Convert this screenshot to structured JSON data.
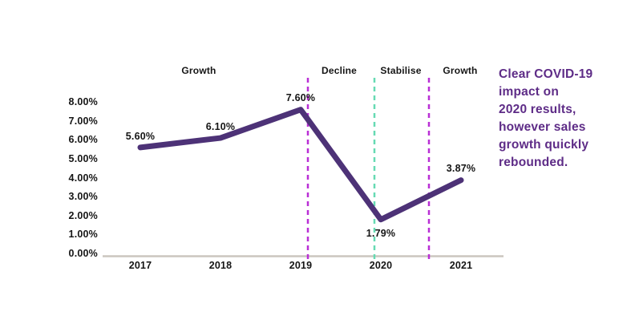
{
  "chart_data": {
    "type": "line",
    "categories": [
      "2017",
      "2018",
      "2019",
      "2020",
      "2021"
    ],
    "values": [
      5.6,
      6.1,
      7.6,
      1.79,
      3.87
    ],
    "data_labels": [
      "5.60%",
      "6.10%",
      "7.60%",
      "1.79%",
      "3.87%"
    ],
    "y_tick_labels": [
      "8.00%",
      "7.00%",
      "6.00%",
      "5.00%",
      "4.00%",
      "3.00%",
      "2.00%",
      "1.00%",
      "0.00%"
    ],
    "ylim": [
      0,
      8
    ],
    "xlabel": "",
    "ylabel": "",
    "grid": "off",
    "legend": "none",
    "line_color": "#4d3277",
    "axis_color": "#ccc6bf",
    "label_color": "#151515",
    "phases": [
      {
        "label": "Growth"
      },
      {
        "label": "Decline"
      },
      {
        "label": "Stabilise"
      },
      {
        "label": "Growth"
      }
    ],
    "dividers": [
      {
        "color": "#b92fd6",
        "style": "dashed"
      },
      {
        "color": "#66dab3",
        "style": "dashed"
      },
      {
        "color": "#b92fd6",
        "style": "dashed"
      }
    ]
  },
  "annotation": {
    "lines": [
      "Clear COVID-19",
      "impact on",
      "2020 results,",
      "however sales",
      "growth quickly",
      "rebounded."
    ],
    "color": "#5e2c87"
  }
}
